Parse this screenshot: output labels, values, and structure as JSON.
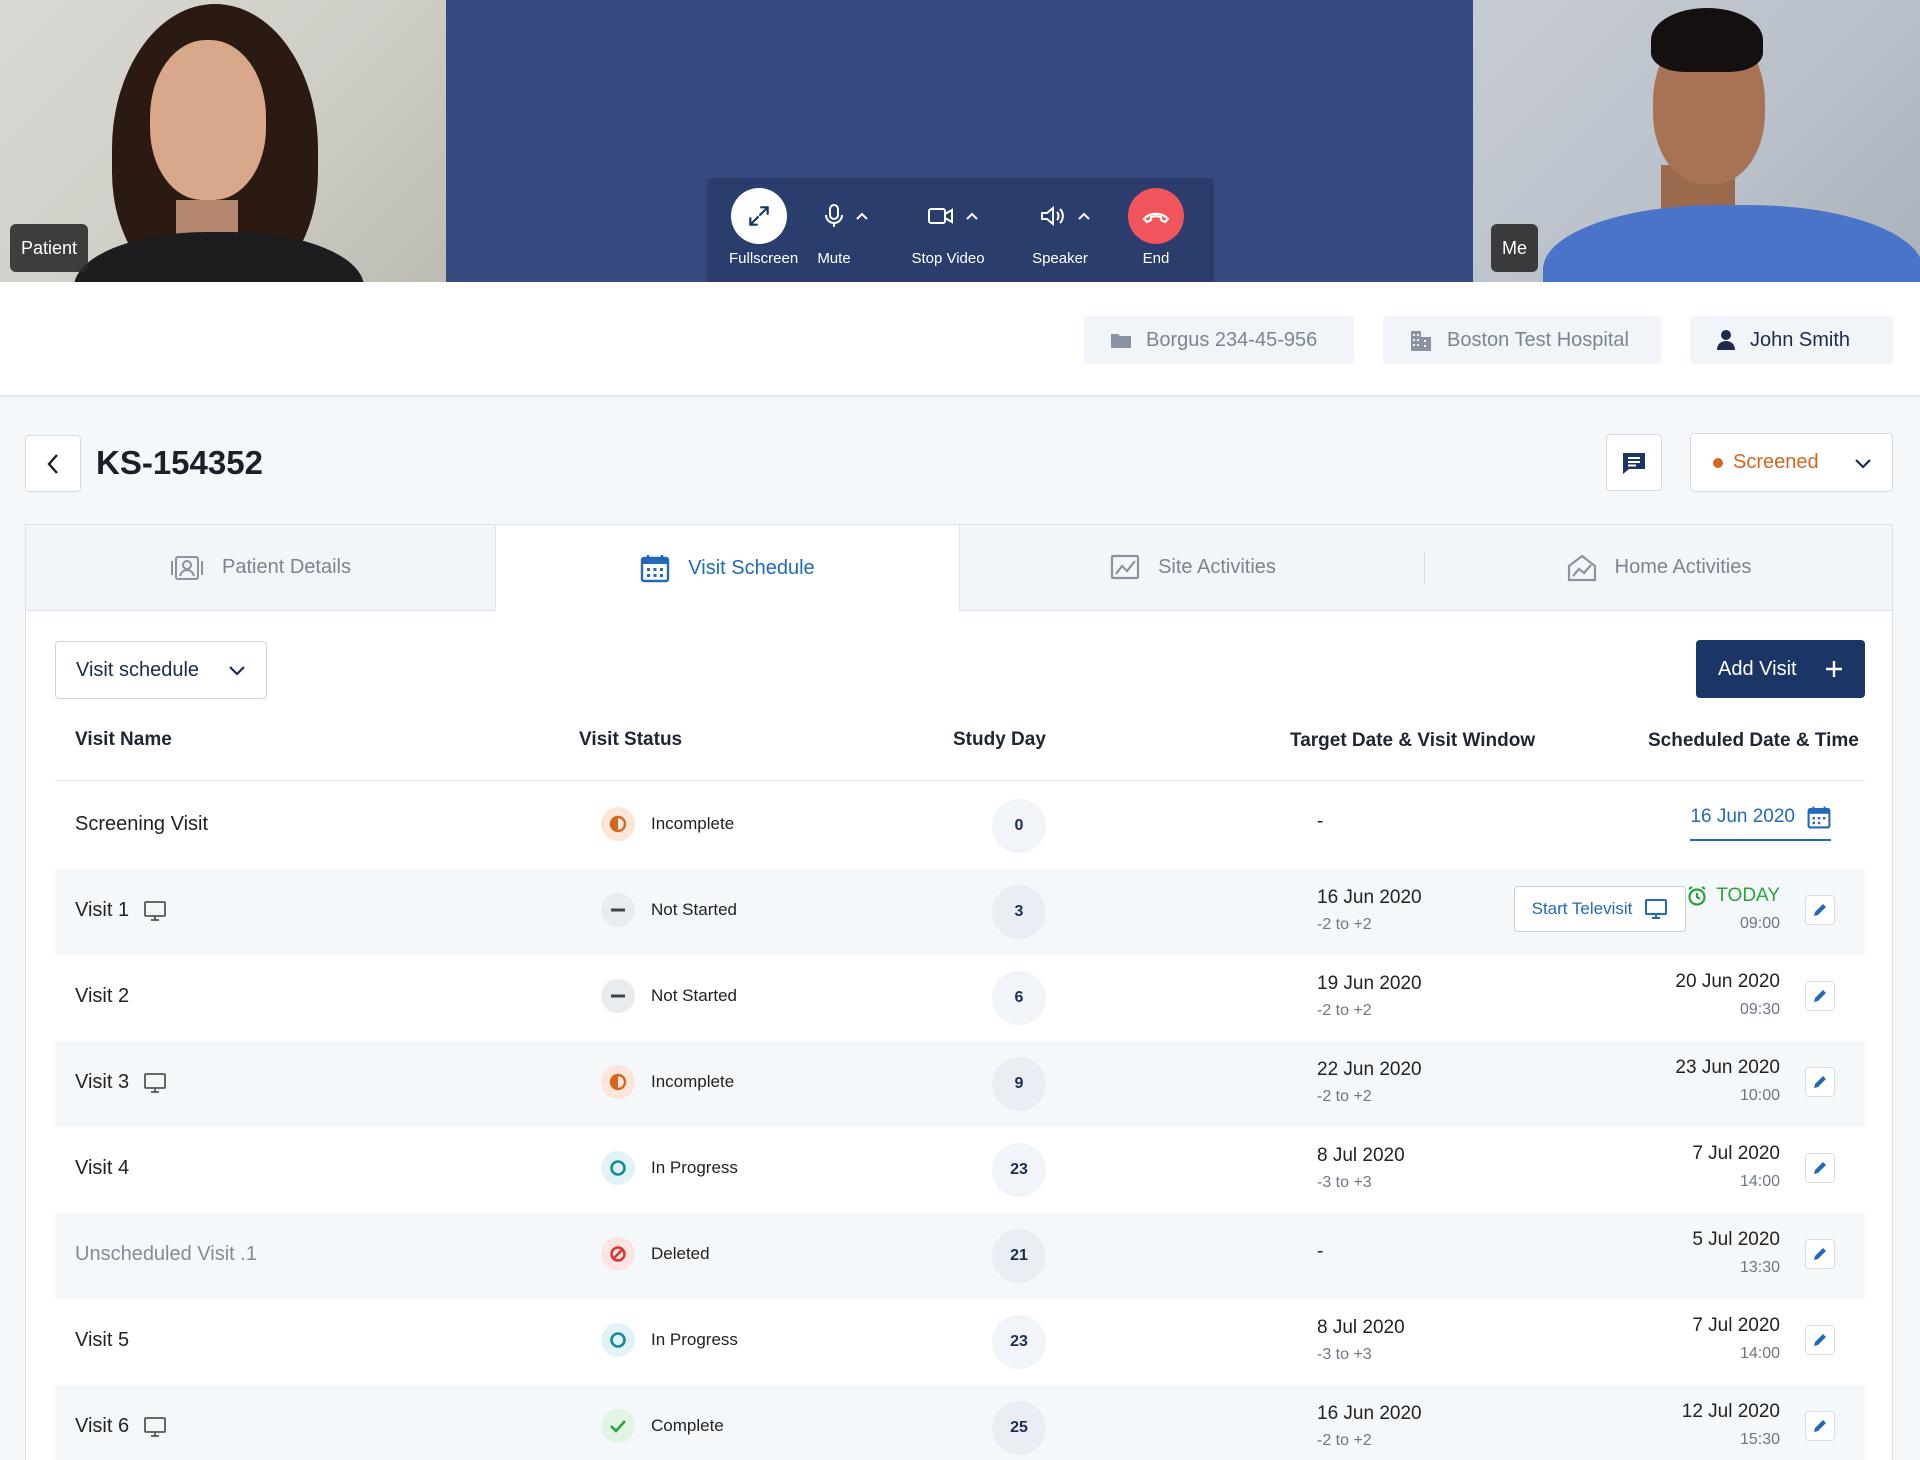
{
  "video": {
    "patient_label": "Patient",
    "me_label": "Me",
    "controls": [
      {
        "label": "Fullscreen",
        "icon": "fullscreen-icon"
      },
      {
        "label": "Mute",
        "icon": "microphone-icon"
      },
      {
        "label": "Stop Video",
        "icon": "video-camera-icon"
      },
      {
        "label": "Speaker",
        "icon": "speaker-icon"
      },
      {
        "label": "End",
        "icon": "end-call-icon"
      }
    ]
  },
  "header": {
    "case": "Borgus 234-45-956",
    "hospital": "Boston Test Hospital",
    "user": "John Smith"
  },
  "page": {
    "title": "KS-154352",
    "status": "Screened",
    "status_color": "#d4661f"
  },
  "tabs": [
    {
      "label": "Patient Details",
      "icon": "patient-id-icon"
    },
    {
      "label": "Visit Schedule",
      "icon": "calendar-icon"
    },
    {
      "label": "Site Activities",
      "icon": "site-chart-icon"
    },
    {
      "label": "Home Activities",
      "icon": "home-chart-icon"
    }
  ],
  "toolbar": {
    "view_select": "Visit schedule",
    "add_visit": "Add Visit"
  },
  "table": {
    "headers": {
      "name": "Visit Name",
      "status": "Visit Status",
      "day": "Study Day",
      "target": "Target Date & Visit Window",
      "scheduled": "Scheduled Date & Time"
    },
    "start_televisit": "Start Televisit",
    "today_label": "TODAY",
    "rows": [
      {
        "name": "Screening Visit",
        "status": "Incomplete",
        "day": "0",
        "target": "-",
        "window": "",
        "sched_date": "16 Jun 2020",
        "sched_time": ""
      },
      {
        "name": "Visit 1",
        "status": "Not Started",
        "day": "3",
        "target": "16 Jun 2020",
        "window": "-2 to +2",
        "sched_date": "TODAY",
        "sched_time": "09:00"
      },
      {
        "name": "Visit 2",
        "status": "Not Started",
        "day": "6",
        "target": "19 Jun 2020",
        "window": "-2 to +2",
        "sched_date": "20 Jun 2020",
        "sched_time": "09:30"
      },
      {
        "name": "Visit 3",
        "status": "Incomplete",
        "day": "9",
        "target": "22 Jun 2020",
        "window": "-2 to +2",
        "sched_date": "23 Jun 2020",
        "sched_time": "10:00"
      },
      {
        "name": "Visit 4",
        "status": "In Progress",
        "day": "23",
        "target": "8 Jul 2020",
        "window": "-3 to +3",
        "sched_date": "7 Jul 2020",
        "sched_time": "14:00"
      },
      {
        "name": "Unscheduled Visit .1",
        "status": "Deleted",
        "day": "21",
        "target": "-",
        "window": "",
        "sched_date": "5 Jul 2020",
        "sched_time": "13:30"
      },
      {
        "name": "Visit 5",
        "status": "In Progress",
        "day": "23",
        "target": "8 Jul 2020",
        "window": "-3 to +3",
        "sched_date": "7 Jul 2020",
        "sched_time": "14:00"
      },
      {
        "name": "Visit 6",
        "status": "Complete",
        "day": "25",
        "target": "16 Jun 2020",
        "window": "-2 to +2",
        "sched_date": "12 Jul 2020",
        "sched_time": "15:30"
      }
    ]
  }
}
